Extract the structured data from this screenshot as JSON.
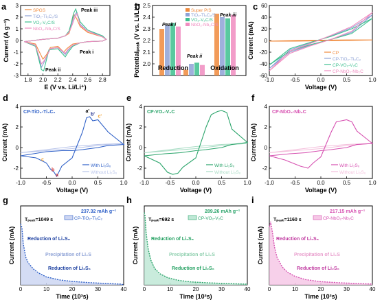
{
  "colors": {
    "cp": "#f08a3c",
    "tio": "#8ea2d6",
    "vo": "#3cbf8e",
    "nbo": "#f08cc0",
    "blue": "#2d5fc7",
    "green": "#2aa46a",
    "pink": "#d64fb0",
    "dark": "#1a2a8a"
  },
  "panels": {
    "a": {
      "label": "a",
      "xlabel": "E (V vs. Li/Li⁺)",
      "ylabel": "Current (A g⁻¹)",
      "legend": [
        "SPGS",
        "TiO₂-Ti₃C₂/S",
        "VO₂-V₂C/S",
        "NbO₂-Nb₂C/S"
      ],
      "ann": [
        "Peak iii",
        "Peak i",
        "Peak ii"
      ]
    },
    "b": {
      "label": "b",
      "ylabel": "Potentialₚₑₐₖ (V vs. Li/Li⁺)",
      "legend": [
        "Super P/S",
        "TiO₂-Ti₃C₂/S",
        "VO₂-V₂C/S",
        "NbO₂-Nb₂C/S"
      ],
      "groups": [
        "Reduction",
        "Oxidation"
      ],
      "ann": [
        "Peak i",
        "Peak ii",
        "Peak iii"
      ]
    },
    "c": {
      "label": "c",
      "xlabel": "Voltage (V)",
      "ylabel": "Current (mA)",
      "legend": [
        "CP",
        "CP-TiO₂-Ti₃C₂",
        "CP-VO₂-V₂C",
        "CP-NbO₂-Nb₂C"
      ]
    },
    "d": {
      "label": "d",
      "title": "CP-TiO₂-Ti₃C₂",
      "xlabel": "Voltage (V)",
      "ylabel": "Current (mA)",
      "legend": [
        "With Li₂S₆",
        "Without Li₂S₆"
      ],
      "ann": [
        "a'",
        "b'",
        "c'",
        "c",
        "b",
        "a"
      ]
    },
    "e": {
      "label": "e",
      "title": "CP-VO₂-V₂C",
      "xlabel": "Voltage (V)",
      "ylabel": "Current (mA)",
      "legend": [
        "With Li₂S₆",
        "Without Li₂S₆"
      ]
    },
    "f": {
      "label": "f",
      "title": "CP-NbO₂-Nb₂C",
      "xlabel": "Voltage (V)",
      "ylabel": "Current (mA)",
      "legend": [
        "With Li₂S₆",
        "Without Li₂S₆"
      ]
    },
    "g": {
      "label": "g",
      "xlabel": "Time (10³s)",
      "ylabel": "Current (mA)",
      "tpeak": "Tₚₑₐₖ=1049 s",
      "capacity": "237.32 mAh g⁻¹",
      "legend": "CP-TiO₂-Ti₃C₂",
      "ann": [
        "Reduction of Li₂S₈",
        "Precipitation of Li₂S",
        "Reduction of Li₂S₆"
      ]
    },
    "h": {
      "label": "h",
      "xlabel": "Time (10³s)",
      "ylabel": "Current (mA)",
      "tpeak": "Tₚₑₐₖ=692 s",
      "capacity": "289.26 mAh g⁻¹",
      "legend": "CP-VO₂-V₂C",
      "ann": [
        "Reduction of Li₂S₈",
        "Precipitation of Li₂S",
        "Reduction of Li₂S₆"
      ]
    },
    "i": {
      "label": "i",
      "xlabel": "Time (10³s)",
      "ylabel": "Current (mA)",
      "tpeak": "Tₚₑₐₖ=1160 s",
      "capacity": "217.15 mAh g⁻¹",
      "legend": "CP-NbO₂-Nb₂C",
      "ann": [
        "Reduction of Li₂S₈",
        "Precipitation of Li₂S",
        "Reduction of Li₂S₆"
      ]
    }
  },
  "chart_data": [
    {
      "id": "a",
      "type": "line",
      "xlim": [
        1.7,
        2.9
      ],
      "ylim": [
        -3,
        3
      ],
      "xticks": [
        "1.8",
        "2.0",
        "2.2",
        "2.4",
        "2.6",
        "2.8"
      ],
      "yticks": [
        "-3",
        "-2",
        "-1",
        "0",
        "1",
        "2",
        "3"
      ],
      "series": [
        {
          "name": "SPGS",
          "x": [
            1.75,
            1.9,
            2.0,
            2.05,
            2.1,
            2.2,
            2.28,
            2.32,
            2.4,
            2.5,
            2.6,
            2.8,
            2.85,
            2.8,
            2.6,
            2.5,
            2.45,
            2.42,
            2.4,
            2.38,
            2.35,
            2.3,
            2.2,
            2.0,
            1.75
          ],
          "y": [
            -0.1,
            -0.3,
            -1.6,
            -1.2,
            -0.6,
            -0.5,
            -1.0,
            -0.7,
            -0.3,
            -0.2,
            -0.1,
            -0.05,
            0.1,
            0.3,
            0.7,
            1.2,
            1.9,
            2.2,
            1.9,
            1.2,
            0.6,
            0.4,
            0.2,
            0.1,
            -0.1
          ]
        },
        {
          "name": "TiO2-Ti3C2/S",
          "x": [
            1.75,
            1.9,
            1.98,
            2.02,
            2.1,
            2.2,
            2.3,
            2.33,
            2.4,
            2.5,
            2.6,
            2.8,
            2.85,
            2.8,
            2.6,
            2.5,
            2.45,
            2.42,
            2.38,
            2.35,
            2.3,
            2.2,
            2.0,
            1.75
          ],
          "y": [
            -0.1,
            -0.4,
            -2.3,
            -1.8,
            -0.7,
            -0.6,
            -1.2,
            -0.9,
            -0.4,
            -0.2,
            -0.1,
            -0.05,
            0.1,
            0.4,
            0.8,
            1.4,
            2.4,
            2.1,
            1.3,
            0.7,
            0.4,
            0.2,
            0.1,
            -0.1
          ]
        },
        {
          "name": "VO2-V2C/S",
          "x": [
            1.75,
            1.9,
            1.98,
            2.01,
            2.08,
            2.2,
            2.3,
            2.34,
            2.4,
            2.5,
            2.6,
            2.8,
            2.85,
            2.8,
            2.6,
            2.5,
            2.44,
            2.41,
            2.38,
            2.35,
            2.3,
            2.2,
            2.0,
            1.75
          ],
          "y": [
            -0.1,
            -0.5,
            -2.5,
            -2.6,
            -0.8,
            -0.7,
            -1.4,
            -1.0,
            -0.5,
            -0.2,
            -0.1,
            -0.05,
            0.1,
            0.4,
            0.9,
            1.6,
            2.7,
            2.3,
            1.5,
            0.8,
            0.4,
            0.2,
            0.1,
            -0.1
          ]
        },
        {
          "name": "NbO2-Nb2C/S",
          "x": [
            1.75,
            1.9,
            1.98,
            2.02,
            2.1,
            2.2,
            2.3,
            2.33,
            2.4,
            2.5,
            2.6,
            2.8,
            2.85,
            2.8,
            2.6,
            2.5,
            2.46,
            2.43,
            2.39,
            2.35,
            2.3,
            2.2,
            2.0,
            1.75
          ],
          "y": [
            -0.1,
            -0.4,
            -2.0,
            -1.7,
            -0.7,
            -0.6,
            -1.1,
            -0.8,
            -0.4,
            -0.2,
            -0.1,
            -0.05,
            0.1,
            0.3,
            0.8,
            1.3,
            2.3,
            2.0,
            1.3,
            0.7,
            0.4,
            0.2,
            0.1,
            -0.1
          ]
        }
      ]
    },
    {
      "id": "b",
      "type": "bar",
      "ylim": [
        1.9,
        2.5
      ],
      "yticks": [
        "2.0",
        "2.1",
        "2.2",
        "2.3",
        "2.4",
        "2.5"
      ],
      "categories": [
        "Reduction: Peak i",
        "Reduction: Peak ii",
        "Oxidation: Peak iii"
      ],
      "series": [
        {
          "name": "Super P/S",
          "values": [
            2.3,
            1.95,
            2.43
          ]
        },
        {
          "name": "TiO2-Ti3C2/S",
          "values": [
            2.33,
            2.0,
            2.4
          ]
        },
        {
          "name": "VO2-V2C/S",
          "values": [
            2.35,
            2.01,
            2.39
          ]
        },
        {
          "name": "NbO2-Nb2C/S",
          "values": [
            2.32,
            1.99,
            2.42
          ]
        }
      ]
    },
    {
      "id": "c",
      "type": "line",
      "xlim": [
        -1.0,
        1.0
      ],
      "ylim": [
        -60,
        60
      ],
      "xticks": [
        "-1.0",
        "-0.5",
        "0.0",
        "0.5",
        "1.0"
      ],
      "yticks": [
        "-60",
        "-40",
        "-20",
        "0",
        "20",
        "40",
        "60"
      ],
      "series": [
        {
          "name": "CP",
          "x": [
            -1.0,
            -0.5,
            0,
            0.5,
            1.0,
            0.5,
            0,
            -0.5,
            -1.0
          ],
          "y": [
            -1,
            -1,
            -0.5,
            0,
            1,
            1,
            0.5,
            0,
            -1
          ]
        },
        {
          "name": "CP-TiO2-Ti3C2",
          "x": [
            -1.0,
            -0.6,
            -0.2,
            0.2,
            0.6,
            1.0,
            0.6,
            0.2,
            -0.2,
            -0.6,
            -1.0
          ],
          "y": [
            -48,
            -20,
            -8,
            2,
            14,
            44,
            22,
            8,
            -4,
            -16,
            -48
          ]
        },
        {
          "name": "CP-VO2-V2C",
          "x": [
            -1.0,
            -0.6,
            -0.2,
            0.2,
            0.6,
            1.0,
            0.6,
            0.2,
            -0.2,
            -0.6,
            -1.0
          ],
          "y": [
            -42,
            -18,
            -7,
            2,
            12,
            38,
            20,
            7,
            -3,
            -14,
            -42
          ]
        },
        {
          "name": "CP-NbO2-Nb2C",
          "x": [
            -1.0,
            -0.6,
            -0.2,
            0.2,
            0.6,
            1.0,
            0.6,
            0.2,
            -0.2,
            -0.6,
            -1.0
          ],
          "y": [
            -52,
            -22,
            -9,
            2,
            16,
            48,
            24,
            9,
            -5,
            -18,
            -52
          ]
        }
      ]
    },
    {
      "id": "d",
      "type": "line",
      "xlim": [
        -1.0,
        1.0
      ],
      "ylim": [
        -3,
        4
      ],
      "xticks": [
        "-1.0",
        "-0.5",
        "0.0",
        "0.5",
        "1.0"
      ],
      "yticks": [
        "-2",
        "0",
        "2",
        "4"
      ],
      "series": [
        {
          "name": "With Li2S6",
          "x": [
            -1.0,
            -0.7,
            -0.5,
            -0.42,
            -0.35,
            -0.3,
            -0.2,
            0.0,
            0.2,
            0.28,
            0.34,
            0.4,
            0.5,
            0.7,
            1.0,
            0.7,
            0.5,
            0.2,
            0.0,
            -0.2,
            -0.5,
            -1.0
          ],
          "y": [
            -0.8,
            -1.0,
            -1.5,
            -2.1,
            -2.4,
            -2.8,
            -1.8,
            -1.0,
            1.5,
            2.9,
            3.0,
            2.6,
            2.7,
            1.5,
            0.3,
            0.2,
            0.0,
            -0.2,
            -0.3,
            -0.3,
            -0.4,
            -0.8
          ]
        },
        {
          "name": "Without Li2S6",
          "x": [
            -1.0,
            -0.5,
            0.0,
            0.5,
            1.0,
            0.5,
            0.0,
            -0.5,
            -1.0
          ],
          "y": [
            -0.5,
            -0.3,
            -0.1,
            0.2,
            0.4,
            0.3,
            0.1,
            -0.2,
            -0.5
          ]
        }
      ]
    },
    {
      "id": "e",
      "type": "line",
      "xlim": [
        -1.0,
        1.0
      ],
      "ylim": [
        -3,
        4
      ],
      "xticks": [
        "-1.0",
        "-0.5",
        "0.0",
        "0.5",
        "1.0"
      ],
      "yticks": [
        "-2",
        "0",
        "2",
        "4"
      ],
      "series": [
        {
          "name": "With Li2S6",
          "x": [
            -1.0,
            -0.7,
            -0.55,
            -0.45,
            -0.35,
            -0.25,
            0.0,
            0.2,
            0.3,
            0.42,
            0.5,
            0.6,
            0.7,
            1.0,
            0.7,
            0.5,
            0.2,
            0.0,
            -0.3,
            -0.6,
            -1.0
          ],
          "y": [
            -0.8,
            -1.5,
            -2.4,
            -2.6,
            -2.5,
            -1.9,
            -1.0,
            2.0,
            3.2,
            3.5,
            3.6,
            3.4,
            1.8,
            0.5,
            0.3,
            0.0,
            -0.2,
            -0.3,
            -0.5,
            -0.6,
            -0.8
          ]
        },
        {
          "name": "Without Li2S6",
          "x": [
            -1.0,
            -0.5,
            0.0,
            0.5,
            1.0,
            0.5,
            0.0,
            -0.5,
            -1.0
          ],
          "y": [
            -0.5,
            -0.3,
            -0.1,
            0.2,
            0.4,
            0.3,
            0.1,
            -0.2,
            -0.5
          ]
        }
      ]
    },
    {
      "id": "f",
      "type": "line",
      "xlim": [
        -1.0,
        1.0
      ],
      "ylim": [
        -3,
        4
      ],
      "xticks": [
        "-1.0",
        "-0.5",
        "0.0",
        "0.5",
        "1.0"
      ],
      "yticks": [
        "-2",
        "0",
        "2",
        "4"
      ],
      "series": [
        {
          "name": "With Li2S6",
          "x": [
            -1.0,
            -0.7,
            -0.5,
            -0.4,
            -0.25,
            -0.15,
            0.0,
            0.2,
            0.3,
            0.4,
            0.5,
            0.6,
            0.7,
            1.0,
            0.7,
            0.5,
            0.2,
            0.0,
            -0.3,
            -0.6,
            -1.0
          ],
          "y": [
            -0.8,
            -1.2,
            -1.6,
            -1.8,
            -2.0,
            -1.5,
            -0.9,
            1.5,
            2.5,
            2.6,
            2.7,
            2.5,
            1.6,
            0.4,
            0.3,
            0.0,
            -0.2,
            -0.3,
            -0.5,
            -0.6,
            -0.8
          ]
        },
        {
          "name": "Without Li2S6",
          "x": [
            -1.0,
            -0.5,
            0.0,
            0.5,
            1.0,
            0.5,
            0.0,
            -0.5,
            -1.0
          ],
          "y": [
            -0.5,
            -0.3,
            -0.1,
            0.2,
            0.4,
            0.3,
            0.1,
            -0.2,
            -0.5
          ]
        }
      ]
    },
    {
      "id": "g",
      "type": "area",
      "xlim": [
        0,
        40
      ],
      "ylim": [
        0,
        0.8
      ],
      "xticks": [
        "0",
        "10",
        "20",
        "30",
        "40"
      ],
      "series": [
        {
          "name": "CP-TiO2-Ti3C2",
          "x": [
            0,
            0.5,
            1,
            2,
            3,
            5,
            7,
            10,
            15,
            20,
            25,
            30,
            35,
            39,
            40
          ],
          "y": [
            0.62,
            0.58,
            0.42,
            0.28,
            0.22,
            0.16,
            0.12,
            0.08,
            0.05,
            0.035,
            0.025,
            0.018,
            0.012,
            0.008,
            0.0
          ]
        }
      ]
    },
    {
      "id": "h",
      "type": "area",
      "xlim": [
        0,
        40
      ],
      "ylim": [
        0,
        1.2
      ],
      "xticks": [
        "0",
        "10",
        "20",
        "30",
        "40"
      ],
      "series": [
        {
          "name": "CP-VO2-V2C",
          "x": [
            0,
            0.3,
            0.7,
            1.5,
            2.5,
            4,
            6,
            9,
            13,
            18,
            25,
            32,
            40
          ],
          "y": [
            1.1,
            1.05,
            0.8,
            0.55,
            0.38,
            0.25,
            0.17,
            0.11,
            0.07,
            0.045,
            0.03,
            0.02,
            0.01
          ]
        }
      ]
    },
    {
      "id": "i",
      "type": "area",
      "xlim": [
        0,
        40
      ],
      "ylim": [
        0,
        0.75
      ],
      "xticks": [
        "0",
        "10",
        "20",
        "30",
        "40"
      ],
      "series": [
        {
          "name": "CP-NbO2-Nb2C",
          "x": [
            0,
            0.5,
            1.2,
            2,
            3,
            5,
            7,
            10,
            14,
            20,
            27,
            35,
            40
          ],
          "y": [
            0.55,
            0.6,
            0.5,
            0.36,
            0.26,
            0.17,
            0.12,
            0.08,
            0.05,
            0.03,
            0.02,
            0.012,
            0.008
          ]
        }
      ]
    }
  ]
}
